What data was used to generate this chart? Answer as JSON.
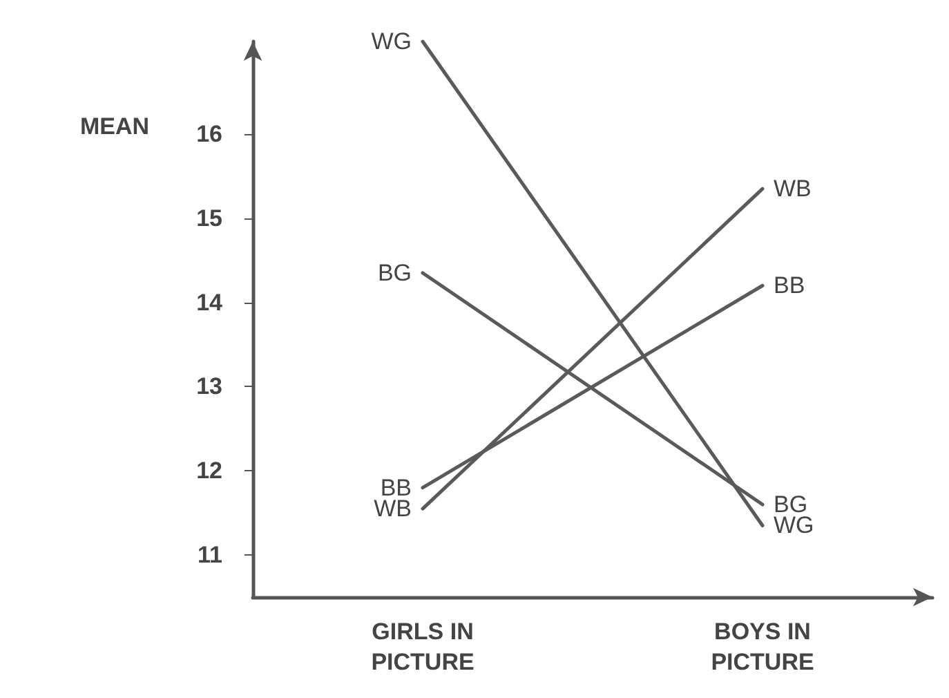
{
  "chart_data": {
    "type": "line",
    "ylabel": "MEAN",
    "categories": [
      "GIRLS IN\nPICTURE",
      "BOYS IN\nPICTURE"
    ],
    "series": [
      {
        "name": "WG",
        "color": "#5a5a5a",
        "values": [
          17.1,
          11.35
        ]
      },
      {
        "name": "BG",
        "color": "#5a5a5a",
        "values": [
          14.35,
          11.6
        ]
      },
      {
        "name": "WB",
        "color": "#5a5a5a",
        "values": [
          11.55,
          15.35
        ]
      },
      {
        "name": "BB",
        "color": "#5a5a5a",
        "values": [
          11.8,
          14.2
        ]
      }
    ],
    "ylim": [
      10.5,
      17.1
    ],
    "yticks": [
      11,
      12,
      13,
      14,
      15,
      16
    ],
    "grid": false,
    "legend": false,
    "marker": "none",
    "line_style": "solid"
  }
}
